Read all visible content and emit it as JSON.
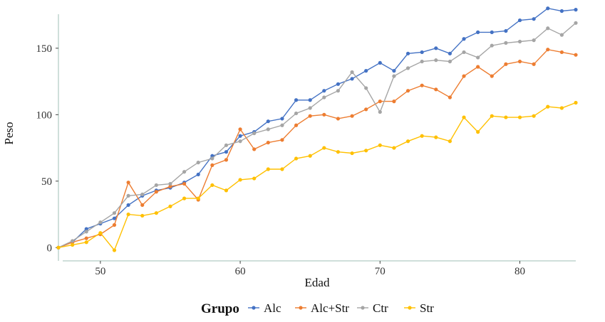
{
  "chart_data": {
    "type": "line",
    "title": "",
    "xlabel": "Edad",
    "ylabel": "Peso",
    "xlim": [
      47,
      84
    ],
    "ylim": [
      -10,
      182
    ],
    "xticks": [
      50,
      60,
      70,
      80
    ],
    "yticks": [
      0,
      50,
      100,
      150
    ],
    "grid": false,
    "legend": {
      "title": "Grupo",
      "position": "bottom"
    },
    "x": [
      47,
      48,
      49,
      50,
      51,
      52,
      53,
      54,
      55,
      56,
      57,
      58,
      59,
      60,
      61,
      62,
      63,
      64,
      65,
      66,
      67,
      68,
      69,
      70,
      71,
      72,
      73,
      74,
      75,
      76,
      77,
      78,
      79,
      80,
      81,
      82,
      83,
      84
    ],
    "series": [
      {
        "name": "Alc",
        "color": "#4472C4",
        "values": [
          0,
          4,
          14,
          18,
          22,
          32,
          39,
          43,
          45,
          49,
          55,
          69,
          72,
          84,
          87,
          95,
          97,
          111,
          111,
          118,
          123,
          127,
          133,
          139,
          133,
          146,
          147,
          150,
          146,
          157,
          162,
          162,
          163,
          171,
          172,
          180,
          178,
          179
        ]
      },
      {
        "name": "Alc+Str",
        "color": "#ED7D31",
        "values": [
          0,
          4,
          7,
          10,
          17,
          49,
          32,
          42,
          46,
          48,
          36,
          62,
          66,
          89,
          74,
          79,
          81,
          92,
          99,
          100,
          97,
          99,
          104,
          110,
          110,
          118,
          122,
          119,
          113,
          129,
          136,
          129,
          138,
          140,
          138,
          149,
          147,
          145
        ]
      },
      {
        "name": "Ctr",
        "color": "#A5A5A5",
        "values": [
          0,
          5,
          12,
          19,
          26,
          39,
          40,
          47,
          48,
          57,
          64,
          67,
          77,
          80,
          86,
          89,
          92,
          101,
          105,
          113,
          118,
          132,
          120,
          102,
          129,
          135,
          140,
          141,
          140,
          147,
          143,
          152,
          154,
          155,
          156,
          165,
          160,
          169
        ]
      },
      {
        "name": "Str",
        "color": "#FFC000",
        "values": [
          0,
          2,
          4,
          11,
          -2,
          25,
          24,
          26,
          31,
          37,
          37,
          47,
          43,
          51,
          52,
          59,
          59,
          67,
          69,
          75,
          72,
          71,
          73,
          77,
          75,
          80,
          84,
          83,
          80,
          98,
          87,
          99,
          98,
          98,
          99,
          106,
          105,
          109
        ]
      }
    ]
  }
}
